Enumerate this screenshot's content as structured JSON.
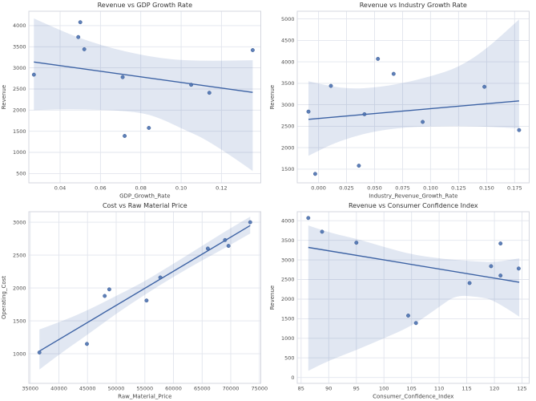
{
  "figure": {
    "background": "#ffffff",
    "style": {
      "point_color": "#4c72b0",
      "point_edge_color": "#3a5a94",
      "point_opacity": 0.9,
      "line_color": "#3c62a4",
      "band_opacity": 0.17,
      "grid_color": "#e2e5ed",
      "spine_color": "#d4d7df",
      "title_color": "#333333",
      "tick_color": "#4d4d4d",
      "label_color": "#444444"
    }
  },
  "chart_data": [
    {
      "type": "scatter",
      "title": "Revenue vs GDP Growth Rate",
      "xlabel": "GDP_Growth_Rate",
      "ylabel": "Revenue",
      "grid": true,
      "legend": null,
      "xlim": [
        0.0245,
        0.1395
      ],
      "ylim": [
        280,
        4340
      ],
      "xticks": [
        0.04,
        0.06,
        0.08,
        0.1,
        0.12
      ],
      "xtick_labels": [
        "0.04",
        "0.06",
        "0.08",
        "0.10",
        "0.12"
      ],
      "yticks": [
        500,
        1000,
        1500,
        2000,
        2500,
        3000,
        3500,
        4000
      ],
      "ytick_labels": [
        "500",
        "1000",
        "1500",
        "2000",
        "2500",
        "3000",
        "3500",
        "4000"
      ],
      "points": [
        [
          0.027,
          2840
        ],
        [
          0.05,
          4080
        ],
        [
          0.049,
          3730
        ],
        [
          0.052,
          3440
        ],
        [
          0.071,
          2780
        ],
        [
          0.072,
          1390
        ],
        [
          0.084,
          1580
        ],
        [
          0.105,
          2600
        ],
        [
          0.114,
          2410
        ],
        [
          0.1355,
          3420
        ]
      ],
      "regression_line": {
        "x": [
          0.027,
          0.1355
        ],
        "y": [
          3140,
          2420
        ]
      },
      "confidence_band": {
        "x": [
          0.027,
          0.04,
          0.05,
          0.065,
          0.08,
          0.09,
          0.1,
          0.115,
          0.1355
        ],
        "upper": [
          4170,
          3890,
          3700,
          3470,
          3310,
          3230,
          3180,
          3165,
          3180
        ],
        "lower": [
          2000,
          2020,
          2020,
          2000,
          1950,
          1800,
          1570,
          1250,
          560
        ]
      }
    },
    {
      "type": "scatter",
      "title": "Revenue vs Industry Growth Rate",
      "xlabel": "Industry_Revenue_Growth_Rate",
      "ylabel": "Revenue",
      "grid": true,
      "legend": null,
      "xlim": [
        -0.019,
        0.188
      ],
      "ylim": [
        1180,
        5180
      ],
      "xticks": [
        0.0,
        0.025,
        0.05,
        0.075,
        0.1,
        0.125,
        0.15,
        0.175
      ],
      "xtick_labels": [
        "0.000",
        "0.025",
        "0.050",
        "0.075",
        "0.100",
        "0.125",
        "0.150",
        "0.175"
      ],
      "yticks": [
        1500,
        2000,
        2500,
        3000,
        3500,
        4000,
        4500,
        5000
      ],
      "ytick_labels": [
        "1500",
        "2000",
        "2500",
        "3000",
        "3500",
        "4000",
        "4500",
        "5000"
      ],
      "points": [
        [
          -0.009,
          2840
        ],
        [
          -0.003,
          1390
        ],
        [
          0.011,
          3440
        ],
        [
          0.036,
          1580
        ],
        [
          0.041,
          2780
        ],
        [
          0.053,
          4070
        ],
        [
          0.067,
          3720
        ],
        [
          0.093,
          2600
        ],
        [
          0.148,
          3420
        ],
        [
          0.179,
          2410
        ]
      ],
      "regression_line": {
        "x": [
          -0.009,
          0.179
        ],
        "y": [
          2660,
          3090
        ]
      },
      "confidence_band": {
        "x": [
          -0.009,
          0.01,
          0.03,
          0.05,
          0.075,
          0.1,
          0.125,
          0.15,
          0.179
        ],
        "upper": [
          3550,
          3430,
          3370,
          3400,
          3500,
          3660,
          3870,
          4300,
          4990
        ],
        "lower": [
          1810,
          2060,
          2250,
          2380,
          2470,
          2500,
          2510,
          2490,
          2450
        ]
      }
    },
    {
      "type": "scatter",
      "title": "Cost vs Raw Material Price",
      "xlabel": "Raw_Material_Price",
      "ylabel": "Operating_Cost",
      "grid": true,
      "legend": null,
      "xlim": [
        34760,
        75240
      ],
      "ylim": [
        550,
        3160
      ],
      "xticks": [
        35000,
        40000,
        45000,
        50000,
        55000,
        60000,
        65000,
        70000,
        75000
      ],
      "xtick_labels": [
        "35000",
        "40000",
        "45000",
        "50000",
        "55000",
        "60000",
        "65000",
        "70000",
        "75000"
      ],
      "yticks": [
        1000,
        1500,
        2000,
        2500,
        3000
      ],
      "ytick_labels": [
        "1000",
        "1500",
        "2000",
        "2500",
        "3000"
      ],
      "points": [
        [
          36600,
          1020
        ],
        [
          44900,
          1150
        ],
        [
          48000,
          1880
        ],
        [
          48800,
          1980
        ],
        [
          55300,
          1810
        ],
        [
          57700,
          2160
        ],
        [
          66000,
          2600
        ],
        [
          69000,
          2730
        ],
        [
          69600,
          2640
        ],
        [
          73400,
          3000
        ]
      ],
      "regression_line": {
        "x": [
          36600,
          73400
        ],
        "y": [
          1040,
          2950
        ]
      },
      "confidence_band": {
        "x": [
          36600,
          41000,
          45000,
          50000,
          55000,
          60000,
          65000,
          69000,
          73400
        ],
        "upper": [
          1370,
          1510,
          1660,
          1880,
          2100,
          2370,
          2640,
          2860,
          3085
        ],
        "lower": [
          760,
          1050,
          1290,
          1610,
          1900,
          2170,
          2420,
          2610,
          2830
        ]
      }
    },
    {
      "type": "scatter",
      "title": "Revenue vs Consumer Confidence Index",
      "xlabel": "Consumer_Confidence_Index",
      "ylabel": "Revenue",
      "grid": true,
      "legend": null,
      "xlim": [
        84.3,
        126.3
      ],
      "ylim": [
        -150,
        4230
      ],
      "xticks": [
        85,
        90,
        95,
        100,
        105,
        110,
        115,
        120,
        125
      ],
      "xtick_labels": [
        "85",
        "90",
        "95",
        "100",
        "105",
        "110",
        "115",
        "120",
        "125"
      ],
      "yticks": [
        0,
        500,
        1000,
        1500,
        2000,
        2500,
        3000,
        3500,
        4000
      ],
      "ytick_labels": [
        "0",
        "500",
        "1000",
        "1500",
        "2000",
        "2500",
        "3000",
        "3500",
        "4000"
      ],
      "points": [
        [
          86.3,
          4070
        ],
        [
          88.8,
          3720
        ],
        [
          95.0,
          3440
        ],
        [
          104.4,
          1580
        ],
        [
          105.8,
          1390
        ],
        [
          115.5,
          2410
        ],
        [
          119.4,
          2840
        ],
        [
          121.1,
          3420
        ],
        [
          121.1,
          2600
        ],
        [
          124.4,
          2780
        ]
      ],
      "regression_line": {
        "x": [
          86.3,
          124.5
        ],
        "y": [
          3320,
          2430
        ]
      },
      "confidence_band": {
        "x": [
          86.3,
          90,
          95,
          100,
          105,
          110,
          113,
          117,
          120,
          124.5
        ],
        "upper": [
          3880,
          3700,
          3540,
          3330,
          3140,
          3040,
          3000,
          2960,
          2940,
          3040
        ],
        "lower": [
          170,
          430,
          700,
          1000,
          1310,
          1800,
          2100,
          2060,
          1980,
          1550
        ]
      }
    }
  ]
}
